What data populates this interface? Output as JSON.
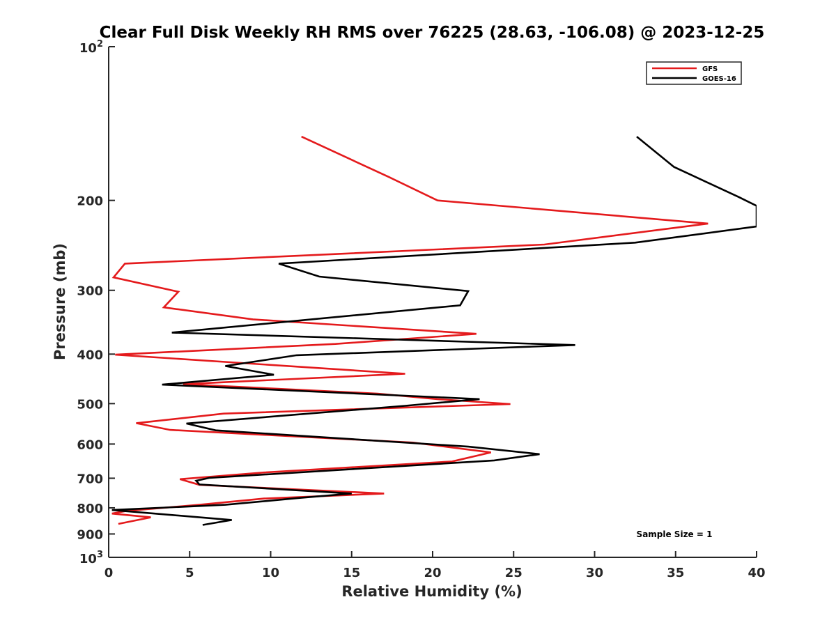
{
  "chart_data": {
    "type": "line",
    "title": "Clear Full Disk Weekly RH RMS over 76225 (28.63, -106.08) @ 2023-12-25",
    "xlabel": "Relative Humidity (%)",
    "ylabel": "Pressure (mb)",
    "xlim": [
      0,
      40
    ],
    "ylim": [
      100,
      1000
    ],
    "y_scale": "log",
    "y_reversed": true,
    "x_ticks": [
      "0",
      "5",
      "10",
      "15",
      "20",
      "25",
      "30",
      "35",
      "40"
    ],
    "y_ticks": [
      "200",
      "300",
      "400",
      "500",
      "600",
      "700",
      "800",
      "900"
    ],
    "y_tick_values": [
      200,
      300,
      400,
      500,
      600,
      700,
      800,
      900
    ],
    "y_decade_ticks": [
      {
        "value": 100,
        "base": "10",
        "exp": "2"
      },
      {
        "value": 1000,
        "base": "10",
        "exp": "3"
      }
    ],
    "legend_placement": "top-right",
    "grid": false,
    "annotation": "Sample Size = 1",
    "series": [
      {
        "name": "GFS",
        "color": "#e41a1c",
        "points": [
          [
            11.9,
            150
          ],
          [
            17.3,
            180
          ],
          [
            20.3,
            200
          ],
          [
            37.0,
            222
          ],
          [
            26.9,
            244
          ],
          [
            1.0,
            266
          ],
          [
            0.3,
            283
          ],
          [
            4.3,
            302
          ],
          [
            3.4,
            324
          ],
          [
            8.9,
            342
          ],
          [
            22.7,
            365
          ],
          [
            14.0,
            382
          ],
          [
            0.4,
            401
          ],
          [
            18.3,
            437
          ],
          [
            4.6,
            458
          ],
          [
            16.6,
            478
          ],
          [
            20.3,
            490
          ],
          [
            24.8,
            501
          ],
          [
            7.1,
            523
          ],
          [
            1.7,
            546
          ],
          [
            3.8,
            563
          ],
          [
            18.8,
            596
          ],
          [
            23.6,
            623
          ],
          [
            21.2,
            649
          ],
          [
            9.6,
            682
          ],
          [
            4.4,
            703
          ],
          [
            5.6,
            721
          ],
          [
            17.0,
            750
          ],
          [
            9.6,
            767
          ],
          [
            5.6,
            789
          ],
          [
            1.1,
            811
          ],
          [
            0.2,
            821
          ],
          [
            2.6,
            835
          ],
          [
            0.6,
            860
          ]
        ]
      },
      {
        "name": "GOES-16",
        "color": "#000000",
        "points": [
          [
            32.6,
            150
          ],
          [
            34.9,
            172
          ],
          [
            38.9,
            197
          ],
          [
            40.0,
            205
          ],
          [
            40.0,
            225
          ],
          [
            32.5,
            242
          ],
          [
            10.5,
            266
          ],
          [
            13.0,
            282
          ],
          [
            22.2,
            301
          ],
          [
            21.7,
            321
          ],
          [
            3.9,
            363
          ],
          [
            28.8,
            384
          ],
          [
            11.6,
            402
          ],
          [
            7.2,
            422
          ],
          [
            10.2,
            439
          ],
          [
            3.3,
            459
          ],
          [
            22.9,
            490
          ],
          [
            18.3,
            505
          ],
          [
            4.8,
            547
          ],
          [
            6.6,
            564
          ],
          [
            22.2,
            607
          ],
          [
            26.6,
            628
          ],
          [
            23.8,
            646
          ],
          [
            6.2,
            699
          ],
          [
            5.4,
            708
          ],
          [
            5.6,
            720
          ],
          [
            15.0,
            750
          ],
          [
            11.8,
            765
          ],
          [
            7.2,
            789
          ],
          [
            0.2,
            808
          ],
          [
            7.6,
            845
          ],
          [
            5.8,
            864
          ]
        ]
      }
    ]
  }
}
